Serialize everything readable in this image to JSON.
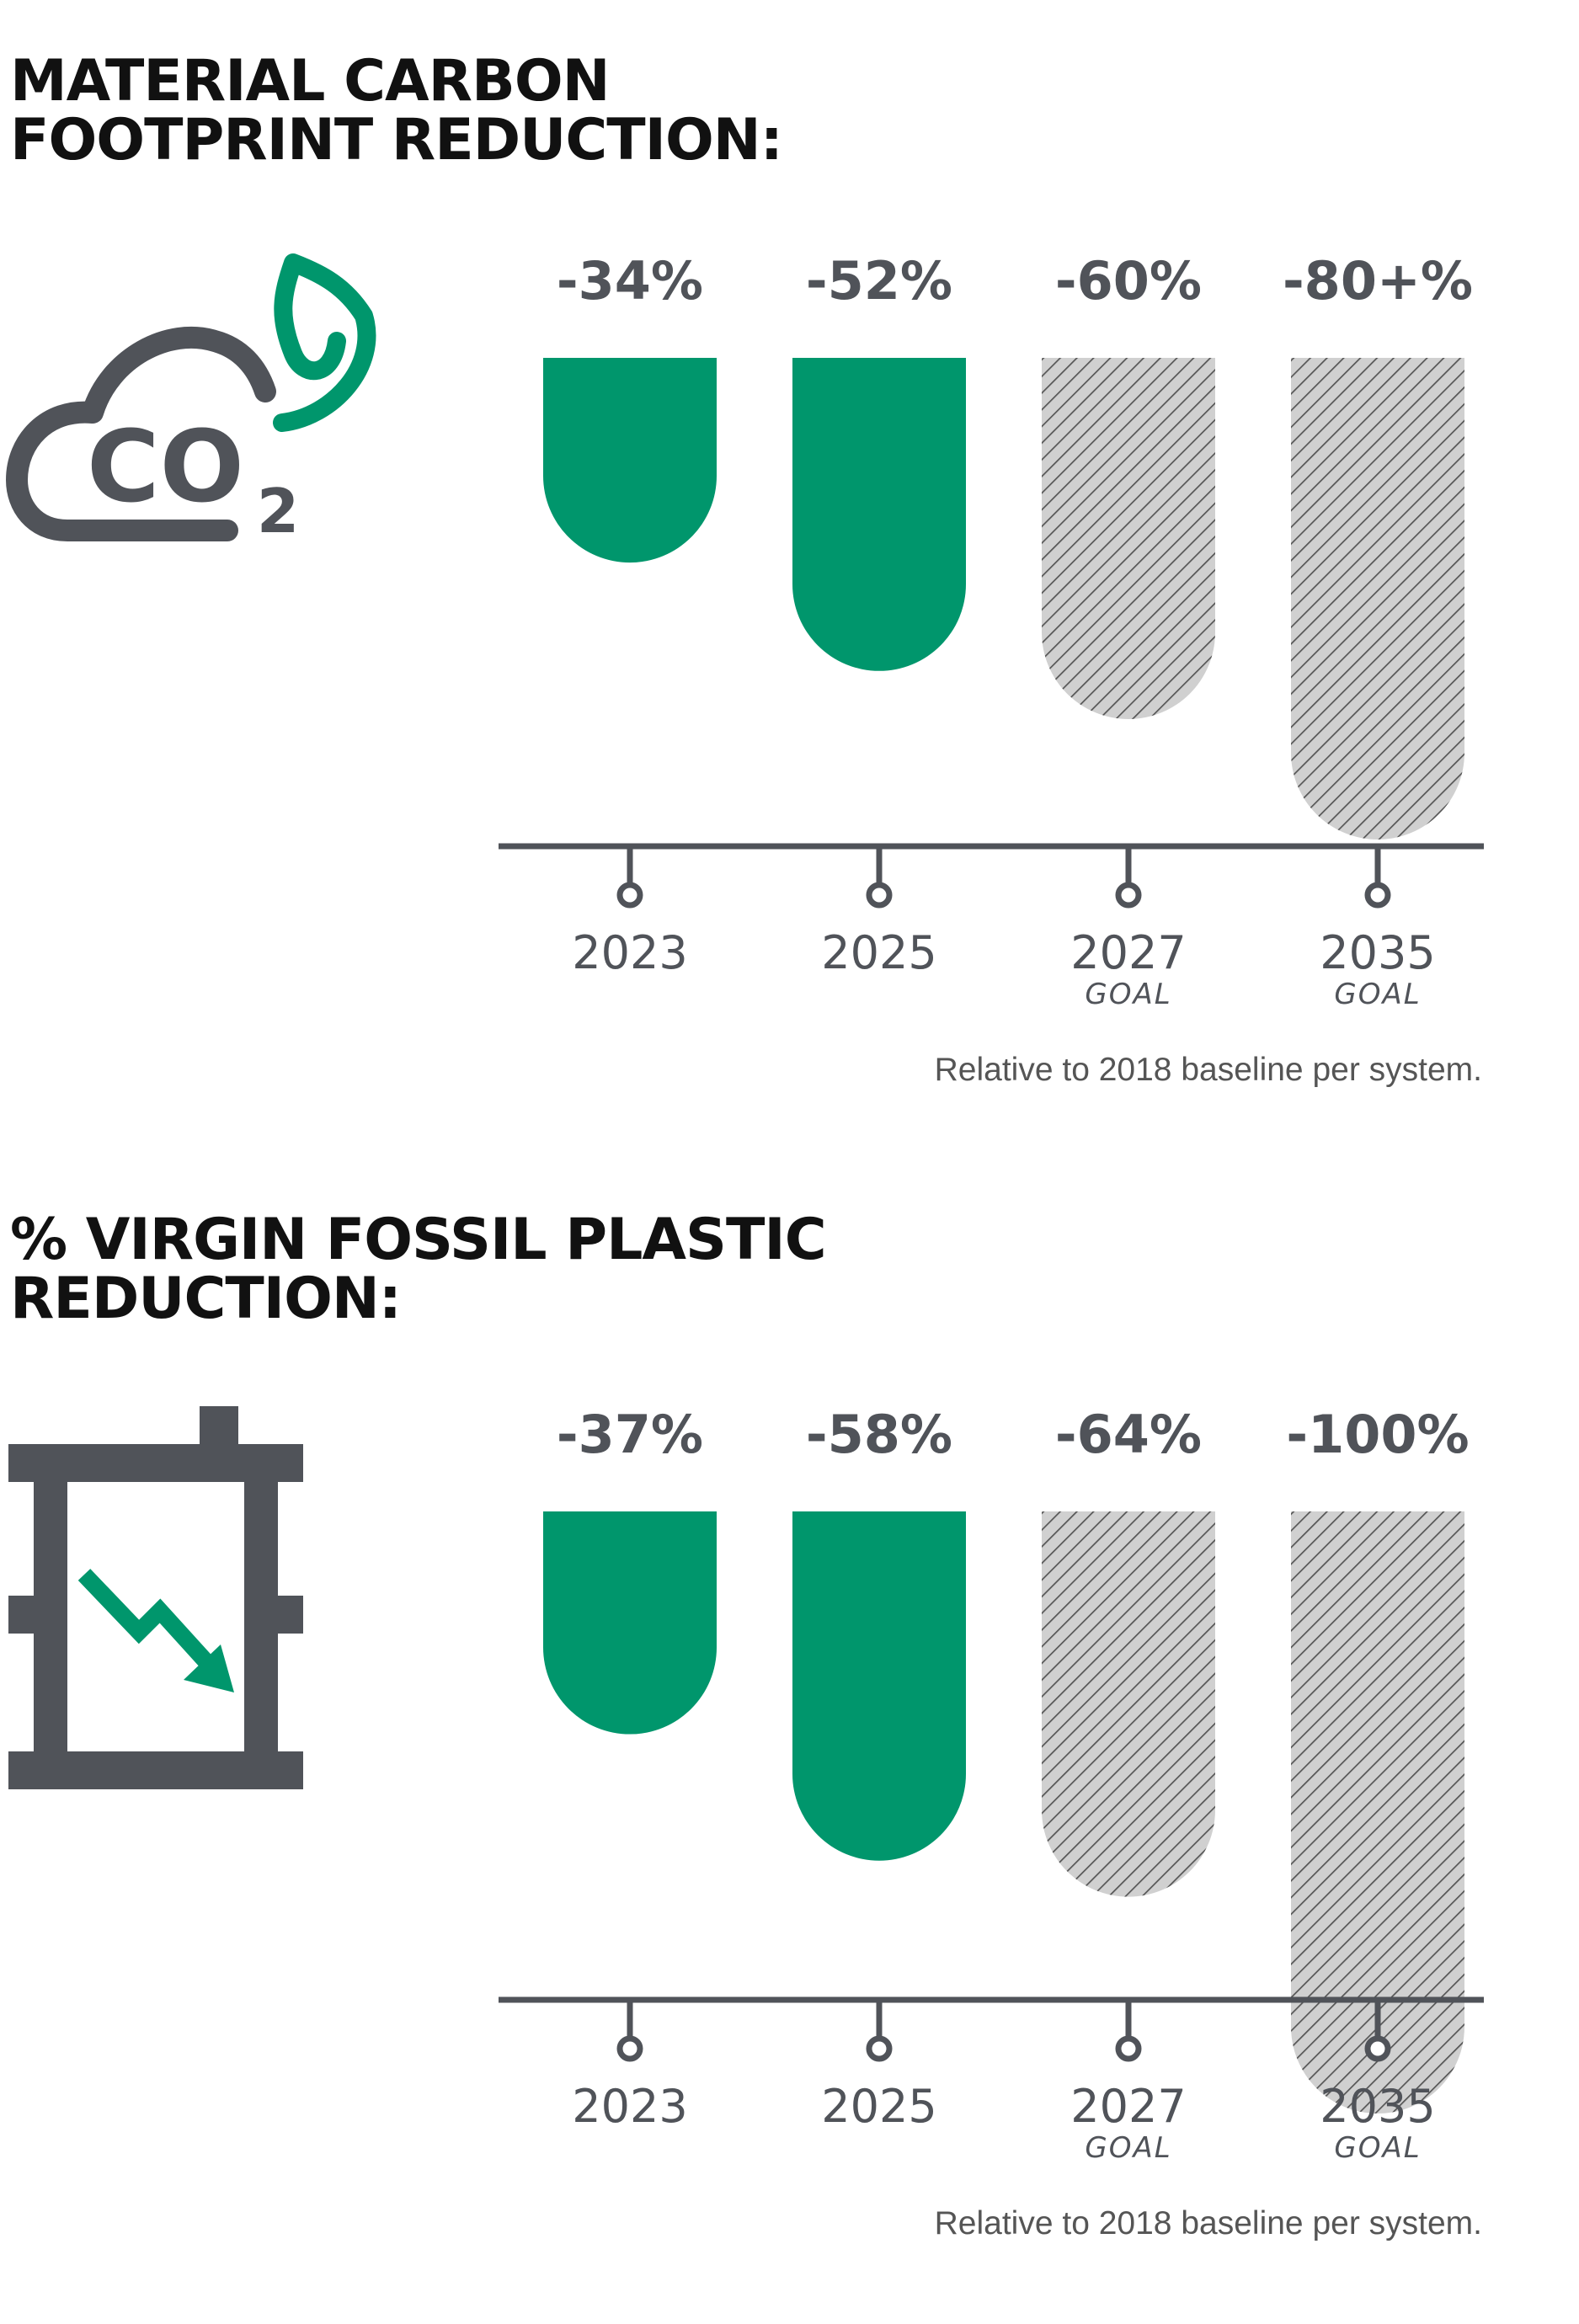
{
  "chart_data": [
    {
      "type": "bar",
      "title_lines": [
        "MATERIAL CARBON",
        "FOOTPRINT REDUCTION:"
      ],
      "icon": "co2-leaf-cloud-icon",
      "categories": [
        "2023",
        "2025",
        "2027",
        "2035"
      ],
      "category_sublabels": [
        "",
        "",
        "GOAL",
        "GOAL"
      ],
      "values": [
        -34,
        -52,
        -60,
        -80
      ],
      "value_labels": [
        "-34%",
        "-52%",
        "-60%",
        "-80+%"
      ],
      "is_goal": [
        false,
        false,
        true,
        true
      ],
      "ylim": [
        -100,
        0
      ],
      "grid": false,
      "footnote": "Relative to 2018 baseline per system."
    },
    {
      "type": "bar",
      "title_lines": [
        "% VIRGIN FOSSIL PLASTIC",
        "REDUCTION:"
      ],
      "icon": "oil-barrel-down-arrow-icon",
      "categories": [
        "2023",
        "2025",
        "2027",
        "2035"
      ],
      "category_sublabels": [
        "",
        "",
        "GOAL",
        "GOAL"
      ],
      "values": [
        -37,
        -58,
        -64,
        -100
      ],
      "value_labels": [
        "-37%",
        "-58%",
        "-64%",
        "-100%"
      ],
      "is_goal": [
        false,
        false,
        true,
        true
      ],
      "ylim": [
        -100,
        0
      ],
      "grid": false,
      "footnote": "Relative to 2018 baseline per system."
    }
  ],
  "colors": {
    "achieved": "#00966c",
    "goal_fill": "#d0d0d0",
    "goal_hatch": "#555555",
    "axis": "#505359",
    "label": "#505359",
    "title": "#111111",
    "icon_gray": "#505359",
    "icon_green": "#00966c"
  }
}
